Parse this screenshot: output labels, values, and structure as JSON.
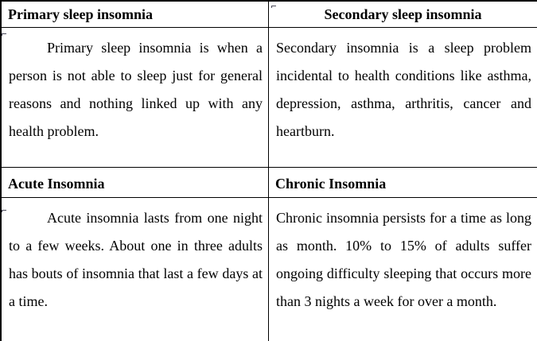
{
  "colors": {
    "background": "#ffffff",
    "border": "#000000",
    "text": "#000000"
  },
  "table": {
    "rows": [
      {
        "type": "header",
        "cells": [
          {
            "text": "Primary sleep insomnia",
            "align": "left"
          },
          {
            "text": "Secondary sleep insomnia",
            "align": "center"
          }
        ]
      },
      {
        "type": "body",
        "cells": [
          {
            "text": "Primary sleep insomnia is when a person is not able to sleep just for general reasons and nothing linked up with any health problem.",
            "indent": true
          },
          {
            "text": "Secondary insomnia is a sleep problem incidental to health conditions like asthma, depression, asthma, arthritis, cancer and heartburn.",
            "indent": false
          }
        ]
      },
      {
        "type": "header",
        "cells": [
          {
            "text": "Acute Insomnia",
            "align": "left"
          },
          {
            "text": "Chronic Insomnia",
            "align": "left"
          }
        ]
      },
      {
        "type": "body",
        "cells": [
          {
            "text": "Acute insomnia lasts from one night to a few weeks. About one in three adults has bouts of insomnia that last a few days at a time.",
            "indent": true
          },
          {
            "text": "Chronic insomnia persists for a time as long as month. 10% to 15% of adults suffer ongoing difficulty sleeping that occurs more than 3 nights a week for over a month.",
            "indent": false
          }
        ]
      }
    ]
  }
}
